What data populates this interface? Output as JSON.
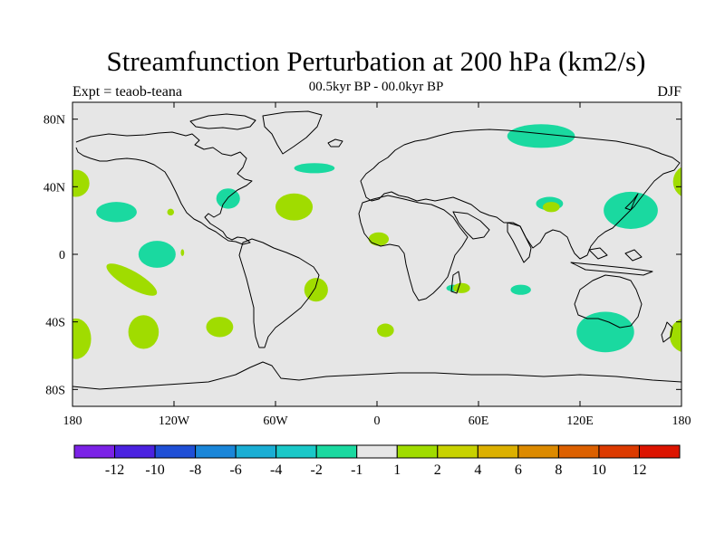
{
  "title": "Streamfunction Perturbation at 200 hPa (km2/s)",
  "subtitle": "00.5kyr BP - 00.0kyr BP",
  "experiment": "Expt = teaob-teana",
  "season": "DJF",
  "map": {
    "background_color": "#e6e6e6",
    "coastline_color": "#000000",
    "lon_ticks": [
      {
        "value": -180,
        "label": "180"
      },
      {
        "value": -120,
        "label": "120W"
      },
      {
        "value": -60,
        "label": "60W"
      },
      {
        "value": 0,
        "label": "0"
      },
      {
        "value": 60,
        "label": "60E"
      },
      {
        "value": 120,
        "label": "120E"
      },
      {
        "value": 180,
        "label": "180"
      }
    ],
    "lat_ticks": [
      {
        "value": 80,
        "label": "80N"
      },
      {
        "value": 40,
        "label": "40N"
      },
      {
        "value": 0,
        "label": "0"
      },
      {
        "value": -40,
        "label": "40S"
      },
      {
        "value": -80,
        "label": "80S"
      }
    ],
    "anomalies": [
      {
        "lon": 97,
        "lat": 70,
        "rlon": 20,
        "rlat": 7,
        "level": -2
      },
      {
        "lon": -37,
        "lat": 51,
        "rlon": 12,
        "rlat": 3,
        "level": -2
      },
      {
        "lon": -88,
        "lat": 33,
        "rlon": 7,
        "rlat": 6,
        "level": -2
      },
      {
        "lon": -154,
        "lat": 25,
        "rlon": 12,
        "rlat": 6,
        "level": -2
      },
      {
        "lon": -130,
        "lat": 0,
        "rlon": 11,
        "rlat": 8,
        "level": -2
      },
      {
        "lon": 150,
        "lat": 26,
        "rlon": 16,
        "rlat": 11,
        "level": -2
      },
      {
        "lon": 102,
        "lat": 30,
        "rlon": 8,
        "rlat": 4,
        "level": -2
      },
      {
        "lon": 85,
        "lat": -21,
        "rlon": 6,
        "rlat": 3,
        "level": -2
      },
      {
        "lon": 45,
        "lat": -20,
        "rlon": 4,
        "rlat": 2,
        "level": -2
      },
      {
        "lon": 135,
        "lat": -46,
        "rlon": 17,
        "rlat": 12,
        "level": -2
      },
      {
        "lon": -178,
        "lat": 42,
        "rlon": 8,
        "rlat": 8,
        "level": 2
      },
      {
        "lon": -49,
        "lat": 28,
        "rlon": 11,
        "rlat": 8,
        "level": 2
      },
      {
        "lon": 185,
        "lat": 43,
        "rlon": 10,
        "rlat": 10,
        "level": 2
      },
      {
        "lon": 1,
        "lat": 9,
        "rlon": 6,
        "rlat": 4,
        "level": 2
      },
      {
        "lon": -145,
        "lat": -15,
        "rlon": 17,
        "rlat": 5,
        "level": 2,
        "rot": 30
      },
      {
        "lon": -138,
        "lat": -46,
        "rlon": 9,
        "rlat": 10,
        "level": 2
      },
      {
        "lon": -93,
        "lat": -43,
        "rlon": 8,
        "rlat": 6,
        "level": 2
      },
      {
        "lon": -36,
        "lat": -21,
        "rlon": 7,
        "rlat": 7,
        "level": 2
      },
      {
        "lon": 5,
        "lat": -45,
        "rlon": 5,
        "rlat": 4,
        "level": 2
      },
      {
        "lon": 50,
        "lat": -20,
        "rlon": 5,
        "rlat": 3,
        "level": 2
      },
      {
        "lon": -178,
        "lat": -50,
        "rlon": 9,
        "rlat": 12,
        "level": 2
      },
      {
        "lon": 182,
        "lat": -48,
        "rlon": 9,
        "rlat": 10,
        "level": 2
      },
      {
        "lon": 103,
        "lat": 28,
        "rlon": 5,
        "rlat": 3,
        "level": 2
      },
      {
        "lon": -122,
        "lat": 25,
        "rlon": 2,
        "rlat": 2,
        "level": 2
      },
      {
        "lon": -115,
        "lat": 1,
        "rlon": 1,
        "rlat": 2,
        "level": 2
      }
    ]
  },
  "colorbar": {
    "colors": [
      "#7b22e6",
      "#4b22e0",
      "#1f4fd6",
      "#1a86d9",
      "#1aaed4",
      "#1ac8c8",
      "#1ad9a0",
      "#e6e6e6",
      "#a0dc00",
      "#c8d200",
      "#dcb000",
      "#dc8a00",
      "#dc6000",
      "#dc3a00",
      "#dc1400"
    ],
    "labels": [
      "-12",
      "-10",
      "-8",
      "-6",
      "-4",
      "-2",
      "-1",
      "1",
      "2",
      "4",
      "6",
      "8",
      "10",
      "12"
    ]
  }
}
